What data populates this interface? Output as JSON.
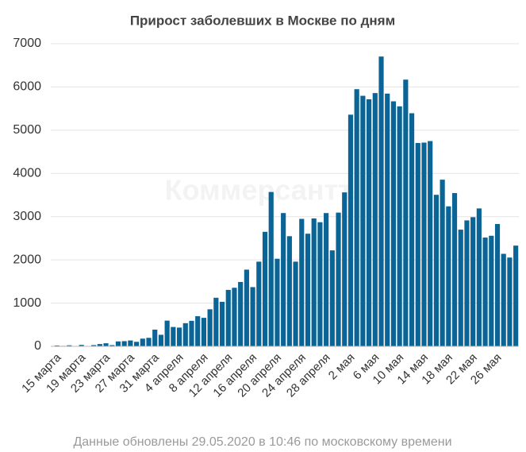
{
  "chart_data": {
    "type": "bar",
    "title": "Прирост заболевших в Москве по дням",
    "footer": "Данные обновлены 29.05.2020 в 10:46 по московскому времени",
    "watermark": "Коммерсантъ",
    "color": "#0a6496",
    "grid": true,
    "ylim": [
      0,
      7000
    ],
    "yticks": [
      0,
      1000,
      2000,
      3000,
      4000,
      5000,
      6000,
      7000
    ],
    "categories": [
      "15 марта",
      null,
      null,
      null,
      "19 марта",
      null,
      null,
      null,
      "23 марта",
      null,
      null,
      null,
      "27 марта",
      null,
      null,
      null,
      "31 марта",
      null,
      null,
      null,
      "4 апреля",
      null,
      null,
      null,
      "8 апреля",
      null,
      null,
      null,
      "12 апреля",
      null,
      null,
      null,
      "16 апреля",
      null,
      null,
      null,
      "20 апреля",
      null,
      null,
      null,
      "24 апреля",
      null,
      null,
      null,
      "28 апреля",
      null,
      null,
      null,
      "2 мая",
      null,
      null,
      null,
      "6 мая",
      null,
      null,
      null,
      "10 мая",
      null,
      null,
      null,
      "14 мая",
      null,
      null,
      null,
      "18 мая",
      null,
      null,
      null,
      "22 мая",
      null,
      null,
      null,
      "26 мая",
      null,
      null,
      null
    ],
    "values": [
      20,
      11,
      24,
      9,
      33,
      5,
      29,
      53,
      71,
      28,
      114,
      120,
      136,
      105,
      178,
      197,
      387,
      267,
      595,
      448,
      434,
      536,
      591,
      697,
      660,
      857,
      1124,
      1030,
      1306,
      1355,
      1489,
      1774,
      1370,
      1959,
      2649,
      3570,
      2026,
      3083,
      2548,
      1959,
      2948,
      2605,
      2958,
      2871,
      3083,
      2220,
      3093,
      3561,
      5358,
      5948,
      5795,
      5714,
      5858,
      6703,
      5846,
      5667,
      5551,
      6169,
      5392,
      4703,
      4712,
      4748,
      3505,
      3855,
      3238,
      3545,
      2699,
      2913,
      2988,
      3190,
      2516,
      2558,
      2830,
      2140,
      2054,
      2330
    ]
  }
}
